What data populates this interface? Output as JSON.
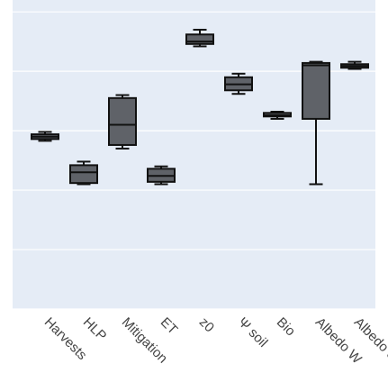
{
  "chart_data": {
    "type": "box",
    "title": "",
    "xlabel": "",
    "ylabel": "",
    "ylim": [
      0,
      5.2
    ],
    "grid": true,
    "legend": "none",
    "colors": {
      "plot_bg": "#e5ecf6",
      "grid": "#ffffff",
      "box_fill": "#5f6268",
      "box_line": "#111111",
      "tick_text": "#444444"
    },
    "categories": [
      "Harvests",
      "HLP",
      "Mitigation",
      "ET",
      "z0",
      "Ψ soil",
      "Bio",
      "Albedo W",
      "Albedo S"
    ],
    "boxes": [
      {
        "category": "Harvests",
        "min": 2.83,
        "q1": 2.86,
        "median": 2.9,
        "q3": 2.94,
        "max": 2.98
      },
      {
        "category": "HLP",
        "min": 2.1,
        "q1": 2.12,
        "median": 2.3,
        "q3": 2.42,
        "max": 2.48
      },
      {
        "category": "Mitigation",
        "min": 2.7,
        "q1": 2.76,
        "median": 3.1,
        "q3": 3.55,
        "max": 3.6
      },
      {
        "category": "ET",
        "min": 2.1,
        "q1": 2.14,
        "median": 2.24,
        "q3": 2.36,
        "max": 2.4
      },
      {
        "category": "z0",
        "min": 4.42,
        "q1": 4.46,
        "median": 4.5,
        "q3": 4.62,
        "max": 4.7
      },
      {
        "category": "Ψ soil",
        "min": 3.62,
        "q1": 3.68,
        "median": 3.78,
        "q3": 3.9,
        "max": 3.96
      },
      {
        "category": "Bio",
        "min": 3.2,
        "q1": 3.24,
        "median": 3.26,
        "q3": 3.3,
        "max": 3.32
      },
      {
        "category": "Albedo W",
        "min": 2.1,
        "q1": 3.2,
        "median": 4.1,
        "q3": 4.14,
        "max": 4.16
      },
      {
        "category": "Albedo S",
        "min": 4.04,
        "q1": 4.06,
        "median": 4.09,
        "q3": 4.12,
        "max": 4.16
      }
    ]
  }
}
